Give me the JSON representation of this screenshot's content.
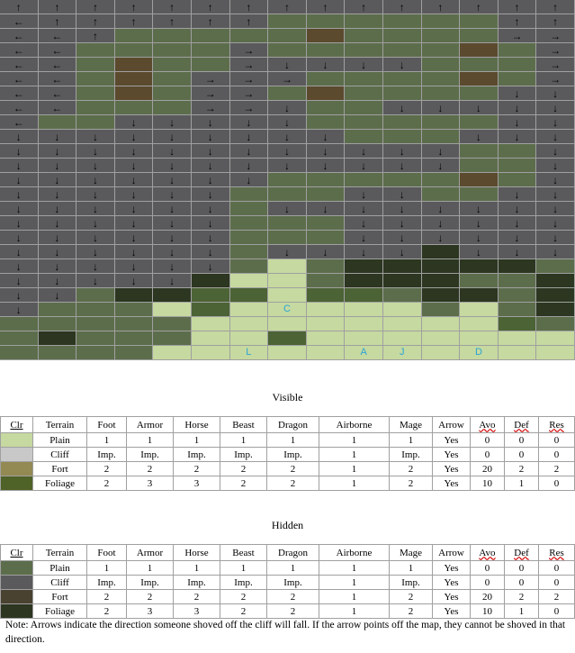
{
  "colors": {
    "X": "#5a5a5d",
    "G": "#5c6d4b",
    "g": "#4c6335",
    "T": "#41492e",
    "P": "#c6d9a0",
    "K": "#2c3620",
    "F": "#5b4a2e",
    "V": "#4a5738",
    "arrow_text": "#000000",
    "label_text": "#2aa5d6",
    "swatch_plain_visible": "#c6d9a0",
    "swatch_cliff_visible": "#c8c8c8",
    "swatch_fort_visible": "#938953",
    "swatch_foliage_visible": "#4f6228",
    "swatch_plain_hidden": "#5c6d4b",
    "swatch_cliff_hidden": "#5a5a5d",
    "swatch_fort_hidden": "#4a4230",
    "swatch_foliage_hidden": "#2c3620"
  },
  "map": {
    "rows": [
      [
        "X",
        "X",
        "X",
        "X",
        "X",
        "X",
        "X",
        "X",
        "X",
        "X",
        "X",
        "X",
        "X",
        "X",
        "X"
      ],
      [
        "X",
        "X",
        "X",
        "X",
        "X",
        "X",
        "X",
        "G",
        "G",
        "G",
        "G",
        "G",
        "G",
        "X",
        "X"
      ],
      [
        "X",
        "X",
        "X",
        "G",
        "G",
        "G",
        "G",
        "G",
        "F",
        "G",
        "G",
        "G",
        "G",
        "X",
        "X"
      ],
      [
        "X",
        "X",
        "G",
        "G",
        "G",
        "G",
        "X",
        "G",
        "G",
        "G",
        "G",
        "G",
        "F",
        "G",
        "X"
      ],
      [
        "X",
        "X",
        "G",
        "F",
        "G",
        "G",
        "X",
        "X",
        "X",
        "X",
        "X",
        "G",
        "G",
        "G",
        "X"
      ],
      [
        "X",
        "X",
        "G",
        "F",
        "G",
        "X",
        "X",
        "X",
        "G",
        "G",
        "G",
        "G",
        "F",
        "G",
        "X"
      ],
      [
        "X",
        "X",
        "G",
        "F",
        "G",
        "X",
        "X",
        "G",
        "F",
        "G",
        "G",
        "G",
        "G",
        "X",
        "X"
      ],
      [
        "X",
        "X",
        "G",
        "G",
        "G",
        "X",
        "X",
        "X",
        "G",
        "G",
        "X",
        "X",
        "X",
        "X",
        "X"
      ],
      [
        "X",
        "G",
        "G",
        "X",
        "X",
        "X",
        "X",
        "X",
        "G",
        "G",
        "G",
        "G",
        "G",
        "X",
        "X"
      ],
      [
        "X",
        "X",
        "X",
        "X",
        "X",
        "X",
        "X",
        "X",
        "X",
        "G",
        "G",
        "G",
        "X",
        "X",
        "X"
      ],
      [
        "X",
        "X",
        "X",
        "X",
        "X",
        "X",
        "X",
        "X",
        "X",
        "X",
        "X",
        "X",
        "G",
        "G",
        "X"
      ],
      [
        "X",
        "X",
        "X",
        "X",
        "X",
        "X",
        "X",
        "X",
        "X",
        "X",
        "X",
        "X",
        "G",
        "G",
        "X"
      ],
      [
        "X",
        "X",
        "X",
        "X",
        "X",
        "X",
        "X",
        "G",
        "G",
        "G",
        "G",
        "G",
        "F",
        "G",
        "X"
      ],
      [
        "X",
        "X",
        "X",
        "X",
        "X",
        "X",
        "G",
        "G",
        "G",
        "X",
        "X",
        "G",
        "G",
        "X",
        "X"
      ],
      [
        "X",
        "X",
        "X",
        "X",
        "X",
        "X",
        "G",
        "X",
        "X",
        "X",
        "X",
        "X",
        "X",
        "X",
        "X"
      ],
      [
        "X",
        "X",
        "X",
        "X",
        "X",
        "X",
        "G",
        "G",
        "G",
        "X",
        "X",
        "X",
        "X",
        "X",
        "X"
      ],
      [
        "X",
        "X",
        "X",
        "X",
        "X",
        "X",
        "G",
        "G",
        "G",
        "X",
        "X",
        "X",
        "X",
        "X",
        "X"
      ],
      [
        "X",
        "X",
        "X",
        "X",
        "X",
        "X",
        "G",
        "X",
        "X",
        "X",
        "X",
        "K",
        "X",
        "X",
        "X"
      ],
      [
        "X",
        "X",
        "X",
        "X",
        "X",
        "X",
        "G",
        "P",
        "G",
        "K",
        "K",
        "K",
        "K",
        "K",
        "G"
      ],
      [
        "X",
        "X",
        "X",
        "X",
        "X",
        "K",
        "P",
        "P",
        "G",
        "K",
        "K",
        "K",
        "G",
        "G",
        "K"
      ],
      [
        "X",
        "X",
        "G",
        "K",
        "K",
        "g",
        "g",
        "P",
        "g",
        "g",
        "G",
        "K",
        "K",
        "G",
        "K"
      ],
      [
        "X",
        "G",
        "G",
        "G",
        "P",
        "g",
        "P",
        "P",
        "P",
        "P",
        "P",
        "G",
        "P",
        "G",
        "K"
      ],
      [
        "G",
        "G",
        "G",
        "G",
        "G",
        "P",
        "P",
        "P",
        "P",
        "P",
        "P",
        "P",
        "P",
        "g",
        "G"
      ],
      [
        "G",
        "K",
        "G",
        "G",
        "G",
        "P",
        "P",
        "g",
        "P",
        "P",
        "P",
        "P",
        "P",
        "P",
        "P"
      ],
      [
        "G",
        "G",
        "G",
        "G",
        "P",
        "P",
        "P",
        "P",
        "P",
        "P",
        "P",
        "P",
        "P",
        "P",
        "P"
      ]
    ],
    "arrows": [
      [
        "↑",
        "↑",
        "↑",
        "↑",
        "↑",
        "↑",
        "↑",
        "↑",
        "↑",
        "↑",
        "↑",
        "↑",
        "↑",
        "↑",
        "↑"
      ],
      [
        "←",
        "↑",
        "↑",
        "↑",
        "↑",
        "↑",
        "↑",
        "",
        "",
        "",
        "",
        "",
        "",
        "↑",
        "↑"
      ],
      [
        "←",
        "←",
        "↑",
        "",
        "",
        "",
        "",
        "",
        "",
        "",
        "",
        "",
        "",
        "→",
        "→"
      ],
      [
        "←",
        "←",
        "",
        "",
        "",
        "",
        "→",
        "",
        "",
        "",
        "",
        "",
        "",
        "",
        "→"
      ],
      [
        "←",
        "←",
        "",
        "",
        "",
        "",
        "→",
        "↓",
        "↓",
        "↓",
        "↓",
        "",
        "",
        "",
        "→"
      ],
      [
        "←",
        "←",
        "",
        "",
        "",
        "→",
        "→",
        "→",
        "",
        "",
        "",
        "",
        "",
        "",
        "→"
      ],
      [
        "←",
        "←",
        "",
        "",
        "",
        "→",
        "→",
        "",
        "",
        "",
        "",
        "",
        "",
        "↓",
        "↓"
      ],
      [
        "←",
        "←",
        "",
        "",
        "",
        "→",
        "→",
        "↓",
        "",
        "",
        "↓",
        "↓",
        "↓",
        "↓",
        "↓"
      ],
      [
        "←",
        "",
        "",
        "↓",
        "↓",
        "↓",
        "↓",
        "↓",
        "",
        "",
        "",
        "",
        "",
        "↓",
        "↓"
      ],
      [
        "↓",
        "↓",
        "↓",
        "↓",
        "↓",
        "↓",
        "↓",
        "↓",
        "↓",
        "",
        "",
        "",
        "↓",
        "↓",
        "↓"
      ],
      [
        "↓",
        "↓",
        "↓",
        "↓",
        "↓",
        "↓",
        "↓",
        "↓",
        "↓",
        "↓",
        "↓",
        "↓",
        "",
        "",
        "↓"
      ],
      [
        "↓",
        "↓",
        "↓",
        "↓",
        "↓",
        "↓",
        "↓",
        "↓",
        "↓",
        "↓",
        "↓",
        "↓",
        "",
        "",
        "↓"
      ],
      [
        "↓",
        "↓",
        "↓",
        "↓",
        "↓",
        "↓",
        "↓",
        "",
        "",
        "",
        "",
        "",
        "",
        "",
        "↓"
      ],
      [
        "↓",
        "↓",
        "↓",
        "↓",
        "↓",
        "↓",
        "",
        "",
        "",
        "↓",
        "↓",
        "",
        "",
        "↓",
        "↓"
      ],
      [
        "↓",
        "↓",
        "↓",
        "↓",
        "↓",
        "↓",
        "",
        "↓",
        "↓",
        "↓",
        "↓",
        "↓",
        "↓",
        "↓",
        "↓"
      ],
      [
        "↓",
        "↓",
        "↓",
        "↓",
        "↓",
        "↓",
        "",
        "",
        "",
        "↓",
        "↓",
        "↓",
        "↓",
        "↓",
        "↓"
      ],
      [
        "↓",
        "↓",
        "↓",
        "↓",
        "↓",
        "↓",
        "",
        "",
        "",
        "↓",
        "↓",
        "↓",
        "↓",
        "↓",
        "↓"
      ],
      [
        "↓",
        "↓",
        "↓",
        "↓",
        "↓",
        "↓",
        "",
        "↓",
        "↓",
        "↓",
        "↓",
        "",
        "↓",
        "↓",
        "↓"
      ],
      [
        "↓",
        "↓",
        "↓",
        "↓",
        "↓",
        "↓",
        "",
        "",
        "",
        "",
        "",
        "",
        "",
        "",
        ""
      ],
      [
        "↓",
        "↓",
        "↓",
        "↓",
        "↓",
        "",
        "",
        "",
        "",
        "",
        "",
        "",
        "",
        "",
        ""
      ],
      [
        "↓",
        "↓",
        "",
        "",
        "",
        "",
        "",
        "",
        "",
        "",
        "",
        "",
        "",
        "",
        ""
      ],
      [
        "↓",
        "",
        "",
        "",
        "",
        "",
        "",
        "",
        "",
        "",
        "",
        "",
        "",
        "",
        ""
      ],
      [
        "",
        "",
        "",
        "",
        "",
        "",
        "",
        "",
        "",
        "",
        "",
        "",
        "",
        "",
        ""
      ],
      [
        "",
        "",
        "",
        "",
        "",
        "",
        "",
        "",
        "",
        "",
        "",
        "",
        "",
        "",
        ""
      ],
      [
        "",
        "",
        "",
        "",
        "",
        "",
        "",
        "",
        "",
        "",
        "",
        "",
        "",
        "",
        ""
      ]
    ],
    "labels": [
      {
        "row": 21,
        "col": 7,
        "text": "C"
      },
      {
        "row": 24,
        "col": 6,
        "text": "L"
      },
      {
        "row": 24,
        "col": 9,
        "text": "A"
      },
      {
        "row": 24,
        "col": 10,
        "text": "J"
      },
      {
        "row": 24,
        "col": 12,
        "text": "D"
      }
    ]
  },
  "visible": {
    "title": "Visible",
    "headers": [
      "Clr",
      "Terrain",
      "Foot",
      "Armor",
      "Horse",
      "Beast",
      "Dragon",
      "Airborne",
      "Mage",
      "Arrow",
      "Avo",
      "Def",
      "Res"
    ],
    "rows": [
      {
        "terrain": "Plain",
        "foot": "1",
        "armor": "1",
        "horse": "1",
        "beast": "1",
        "dragon": "1",
        "airborne": "1",
        "mage": "1",
        "arrow": "Yes",
        "avo": "0",
        "def": "0",
        "res": "0"
      },
      {
        "terrain": "Cliff",
        "foot": "Imp.",
        "armor": "Imp.",
        "horse": "Imp.",
        "beast": "Imp.",
        "dragon": "Imp.",
        "airborne": "1",
        "mage": "Imp.",
        "arrow": "Yes",
        "avo": "0",
        "def": "0",
        "res": "0"
      },
      {
        "terrain": "Fort",
        "foot": "2",
        "armor": "2",
        "horse": "2",
        "beast": "2",
        "dragon": "2",
        "airborne": "1",
        "mage": "2",
        "arrow": "Yes",
        "avo": "20",
        "def": "2",
        "res": "2"
      },
      {
        "terrain": "Foliage",
        "foot": "2",
        "armor": "3",
        "horse": "3",
        "beast": "2",
        "dragon": "2",
        "airborne": "1",
        "mage": "2",
        "arrow": "Yes",
        "avo": "10",
        "def": "1",
        "res": "0"
      }
    ]
  },
  "hidden": {
    "title": "Hidden",
    "headers": [
      "Clr",
      "Terrain",
      "Foot",
      "Armor",
      "Horse",
      "Beast",
      "Dragon",
      "Airborne",
      "Mage",
      "Arrow",
      "Avo",
      "Def",
      "Res"
    ],
    "rows": [
      {
        "terrain": "Plain",
        "foot": "1",
        "armor": "1",
        "horse": "1",
        "beast": "1",
        "dragon": "1",
        "airborne": "1",
        "mage": "1",
        "arrow": "Yes",
        "avo": "0",
        "def": "0",
        "res": "0"
      },
      {
        "terrain": "Cliff",
        "foot": "Imp.",
        "armor": "Imp.",
        "horse": "Imp.",
        "beast": "Imp.",
        "dragon": "Imp.",
        "airborne": "1",
        "mage": "Imp.",
        "arrow": "Yes",
        "avo": "0",
        "def": "0",
        "res": "0"
      },
      {
        "terrain": "Fort",
        "foot": "2",
        "armor": "2",
        "horse": "2",
        "beast": "2",
        "dragon": "2",
        "airborne": "1",
        "mage": "2",
        "arrow": "Yes",
        "avo": "20",
        "def": "2",
        "res": "2"
      },
      {
        "terrain": "Foliage",
        "foot": "2",
        "armor": "3",
        "horse": "3",
        "beast": "2",
        "dragon": "2",
        "airborne": "1",
        "mage": "2",
        "arrow": "Yes",
        "avo": "10",
        "def": "1",
        "res": "0"
      }
    ]
  },
  "note": "Note: Arrows indicate the direction someone shoved off the cliff will fall.  If the arrow points off the map, they cannot be shoved in that direction."
}
